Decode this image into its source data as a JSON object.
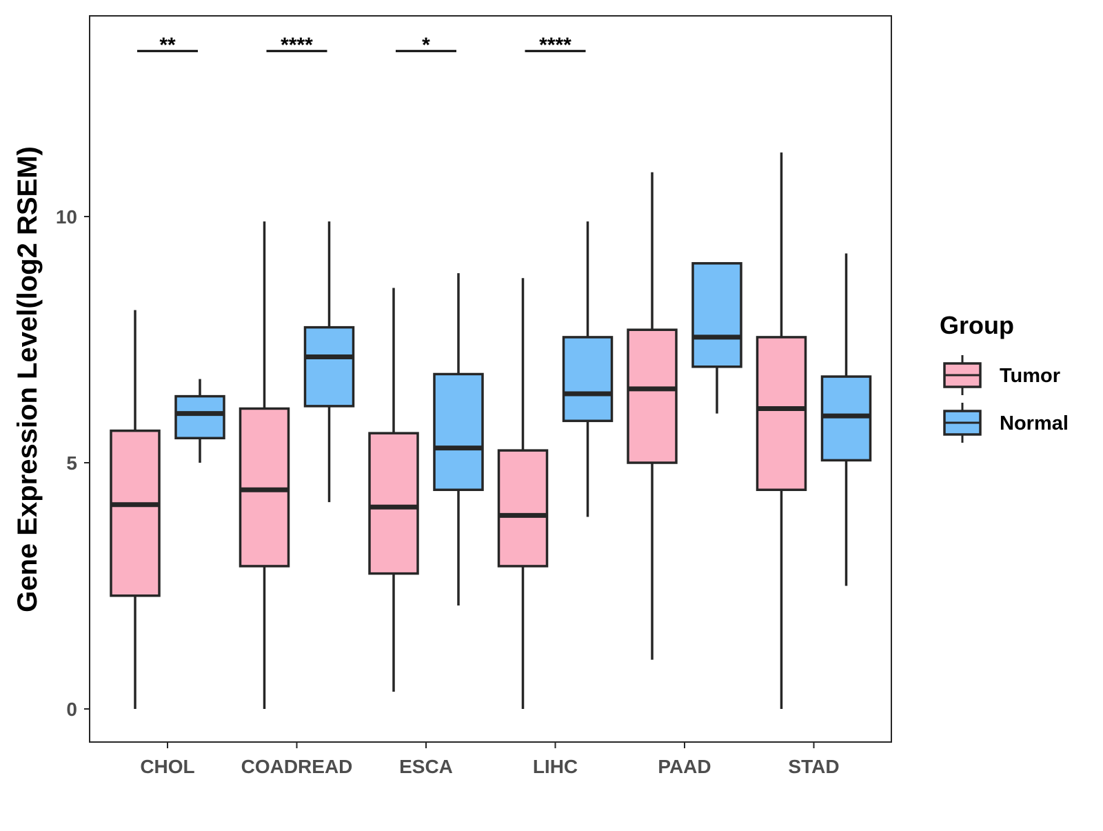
{
  "chart_data": {
    "type": "box",
    "title": "",
    "xlabel": "",
    "ylabel": "Gene Expression Level(log2 RSEM)",
    "ylim": [
      -0.65,
      14.1
    ],
    "yticks": [
      0,
      5,
      10
    ],
    "categories": [
      "CHOL",
      "COADREAD",
      "ESCA",
      "LIHC",
      "PAAD",
      "STAD"
    ],
    "legend": {
      "title": "Group",
      "placement": "right",
      "entries": [
        "Tumor",
        "Normal"
      ]
    },
    "colors": {
      "Tumor": "#fbb1c3",
      "Normal": "#77bff8",
      "outline": "#262626"
    },
    "series": [
      {
        "name": "Tumor",
        "boxes": [
          {
            "category": "CHOL",
            "min": 0.0,
            "q1": 2.3,
            "median": 4.15,
            "q3": 5.65,
            "max": 8.1
          },
          {
            "category": "COADREAD",
            "min": 0.0,
            "q1": 2.9,
            "median": 4.45,
            "q3": 6.1,
            "max": 9.9
          },
          {
            "category": "ESCA",
            "min": 0.35,
            "q1": 2.75,
            "median": 4.1,
            "q3": 5.6,
            "max": 8.55
          },
          {
            "category": "LIHC",
            "min": 0.0,
            "q1": 2.9,
            "median": 3.93,
            "q3": 5.25,
            "max": 8.75
          },
          {
            "category": "PAAD",
            "min": 1.0,
            "q1": 5.0,
            "median": 6.5,
            "q3": 7.7,
            "max": 10.9
          },
          {
            "category": "STAD",
            "min": 0.0,
            "q1": 4.45,
            "median": 6.1,
            "q3": 7.55,
            "max": 11.3
          }
        ]
      },
      {
        "name": "Normal",
        "boxes": [
          {
            "category": "CHOL",
            "min": 5.0,
            "q1": 5.5,
            "median": 6.0,
            "q3": 6.35,
            "max": 6.7
          },
          {
            "category": "COADREAD",
            "min": 4.2,
            "q1": 6.15,
            "median": 7.15,
            "q3": 7.75,
            "max": 9.9
          },
          {
            "category": "ESCA",
            "min": 2.1,
            "q1": 4.45,
            "median": 5.3,
            "q3": 6.8,
            "max": 8.85
          },
          {
            "category": "LIHC",
            "min": 3.9,
            "q1": 5.85,
            "median": 6.4,
            "q3": 7.55,
            "max": 9.9
          },
          {
            "category": "PAAD",
            "min": 6.0,
            "q1": 6.95,
            "median": 7.55,
            "q3": 9.05,
            "max": 9.05
          },
          {
            "category": "STAD",
            "min": 2.5,
            "q1": 5.05,
            "median": 5.95,
            "q3": 6.75,
            "max": 9.25
          }
        ]
      }
    ],
    "annotations": [
      {
        "category": "CHOL",
        "label": "**"
      },
      {
        "category": "COADREAD",
        "label": "****"
      },
      {
        "category": "ESCA",
        "label": "*"
      },
      {
        "category": "LIHC",
        "label": "****"
      }
    ]
  }
}
